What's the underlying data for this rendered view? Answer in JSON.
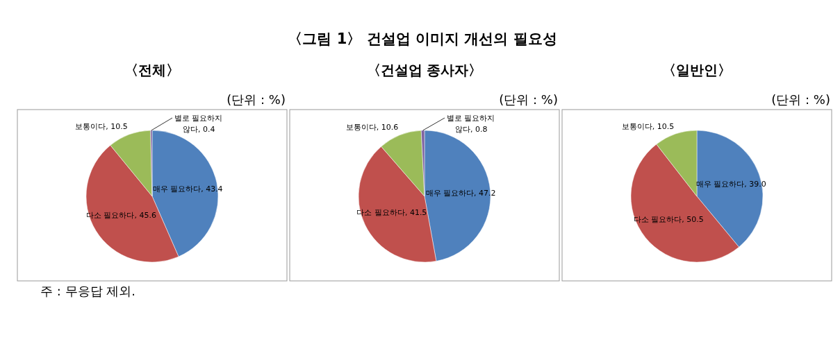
{
  "chart_data": [
    {
      "type": "pie",
      "title": "〈전체〉",
      "subtitle": "(단위 : %)",
      "annotations": [
        "〈그림 1〉 건설업 이미지 개선의 필요성",
        "주 : 무응답 제외."
      ],
      "categories": [
        "매우 필요하다",
        "다소 필요하다",
        "보통이다",
        "별로 필요하지 않다"
      ],
      "values": [
        43.4,
        45.6,
        10.5,
        0.4
      ],
      "value_labels": [
        "43.4",
        "45.6",
        "10.5",
        "0.4"
      ],
      "colors": [
        "#4f81bd",
        "#c0504d",
        "#9bbb59",
        "#8064a2"
      ]
    },
    {
      "type": "pie",
      "title": "〈건설업 종사자〉",
      "subtitle": "(단위 : %)",
      "categories": [
        "매우 필요하다",
        "다소 필요하다",
        "보통이다",
        "별로 필요하지 않다"
      ],
      "values": [
        47.2,
        41.5,
        10.6,
        0.8
      ],
      "value_labels": [
        "47.2",
        "41.5",
        "10.6",
        "0.8"
      ],
      "colors": [
        "#4f81bd",
        "#c0504d",
        "#9bbb59",
        "#8064a2"
      ]
    },
    {
      "type": "pie",
      "title": "〈일반인〉",
      "subtitle": "(단위 : %)",
      "categories": [
        "매우 필요하다",
        "다소 필요하다",
        "보통이다"
      ],
      "values": [
        39.0,
        50.5,
        10.5
      ],
      "value_labels": [
        "39.0",
        "50.5",
        "10.5"
      ],
      "colors": [
        "#4f81bd",
        "#c0504d",
        "#9bbb59"
      ]
    }
  ]
}
